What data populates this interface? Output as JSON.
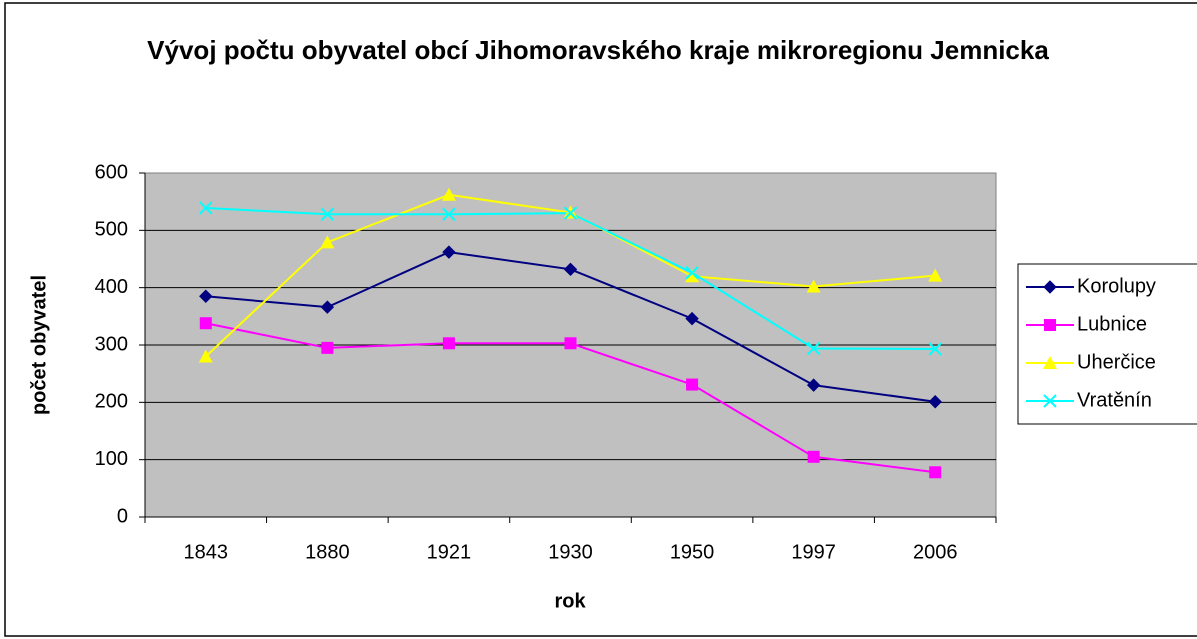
{
  "chart_data": {
    "type": "line",
    "title": "Vývoj počtu obyvatel obcí Jihomoravského kraje mikroregionu Jemnicka",
    "x_label": "rok",
    "y_label": "počet obyvatel",
    "categories": [
      "1843",
      "1880",
      "1921",
      "1930",
      "1950",
      "1997",
      "2006"
    ],
    "series": [
      {
        "name": "Korolupy",
        "color": "#000080",
        "marker": "diamond",
        "values": [
          385,
          366,
          462,
          432,
          346,
          230,
          201
        ]
      },
      {
        "name": "Lubnice",
        "color": "#ff00ff",
        "marker": "square",
        "values": [
          338,
          295,
          303,
          303,
          231,
          105,
          78
        ]
      },
      {
        "name": "Uherčice",
        "color": "#ffff00",
        "marker": "triangle",
        "values": [
          280,
          479,
          562,
          531,
          420,
          402,
          421
        ]
      },
      {
        "name": "Vratěnín",
        "color": "#00ffff",
        "marker": "x",
        "values": [
          539,
          528,
          528,
          530,
          426,
          294,
          293
        ]
      }
    ],
    "ylim": [
      0,
      600
    ],
    "yticks": [
      0,
      100,
      200,
      300,
      400,
      500,
      600
    ],
    "grid": true,
    "legend": "right"
  }
}
